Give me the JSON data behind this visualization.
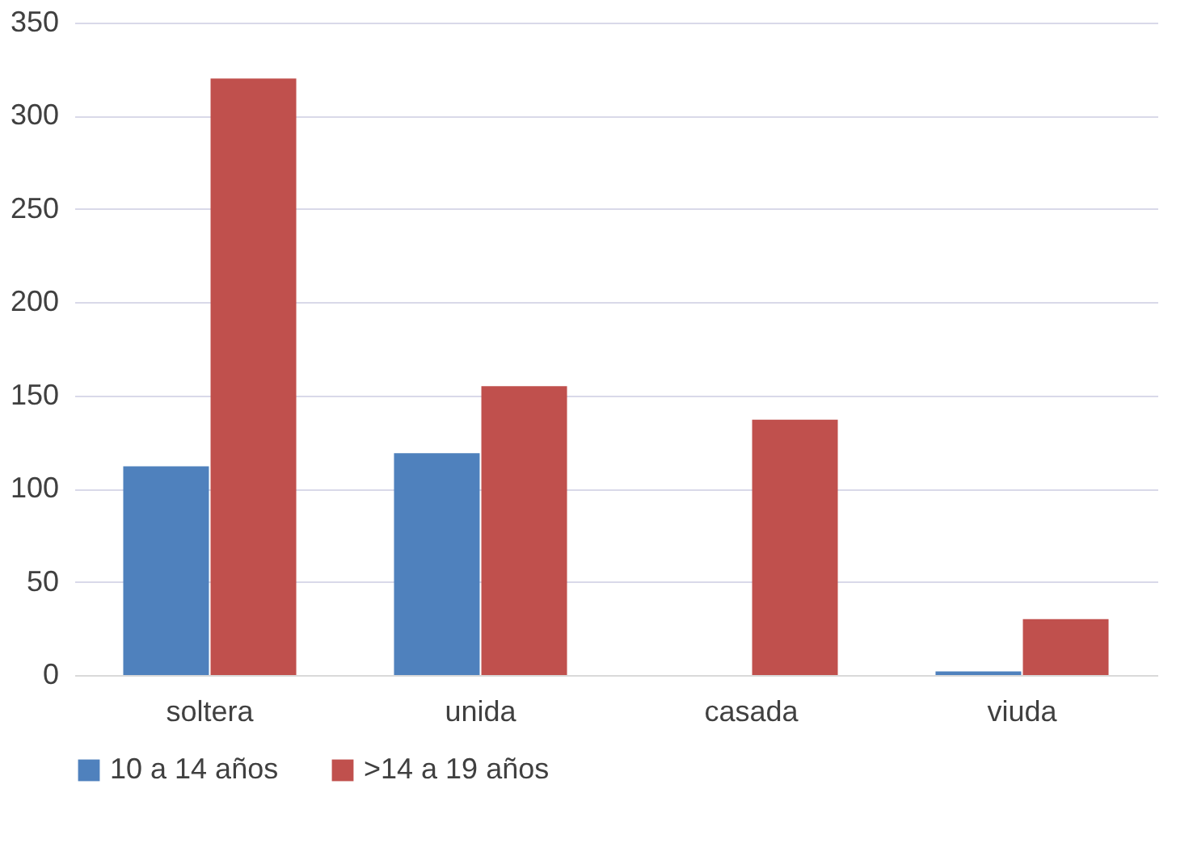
{
  "chart_data": {
    "type": "bar",
    "categories": [
      "soltera",
      "unida",
      "casada",
      "viuda"
    ],
    "series": [
      {
        "name": "10 a 14 años",
        "color": "#4f81bd",
        "values": [
          112,
          119,
          0,
          2
        ]
      },
      {
        "name": ">14 a 19 años",
        "color": "#c0504d",
        "values": [
          320,
          155,
          137,
          30
        ]
      }
    ],
    "ylim": [
      0,
      350
    ],
    "yticks": [
      0,
      50,
      100,
      150,
      200,
      250,
      300,
      350
    ],
    "grid": "y",
    "legend": "bottom"
  }
}
